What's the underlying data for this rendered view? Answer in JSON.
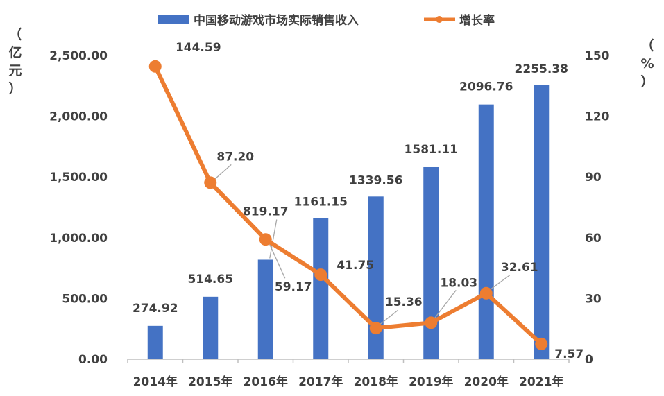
{
  "chart_data": {
    "type": "bar+line",
    "categories": [
      "2014年",
      "2015年",
      "2016年",
      "2017年",
      "2018年",
      "2019年",
      "2020年",
      "2021年"
    ],
    "series": [
      {
        "name": "中国移动游戏市场实际销售收入",
        "type": "bar",
        "axis": "left",
        "color": "#4472C4",
        "values": [
          274.92,
          514.65,
          819.17,
          1161.15,
          1339.56,
          1581.11,
          2096.76,
          2255.38
        ],
        "labels": [
          "274.92",
          "514.65",
          "819.17",
          "1161.15",
          "1339.56",
          "1581.11",
          "2096.76",
          "2255.38"
        ]
      },
      {
        "name": "增长率",
        "type": "line",
        "axis": "right",
        "color": "#ED7D31",
        "values": [
          144.59,
          87.2,
          59.17,
          41.75,
          15.36,
          18.03,
          32.61,
          7.57
        ],
        "labels": [
          "144.59",
          "87.20",
          "59.17",
          "41.75",
          "15.36",
          "18.03",
          "32.61",
          "7.57"
        ]
      }
    ],
    "y_left": {
      "unit": [
        "（",
        "亿",
        "元",
        "）"
      ],
      "ticks": [
        "0.00",
        "500.00",
        "1,000.00",
        "1,500.00",
        "2,000.00",
        "2,500.00"
      ],
      "tick_values": [
        0,
        500,
        1000,
        1500,
        2000,
        2500
      ],
      "ylim": [
        0,
        2500
      ]
    },
    "y_right": {
      "unit": [
        "（",
        "%",
        "）"
      ],
      "ticks": [
        "0",
        "30",
        "60",
        "90",
        "120",
        "150"
      ],
      "tick_values": [
        0,
        30,
        60,
        90,
        120,
        150
      ],
      "ylim": [
        0,
        150
      ]
    },
    "legend": {
      "placement": "top-center"
    },
    "grid": false
  }
}
